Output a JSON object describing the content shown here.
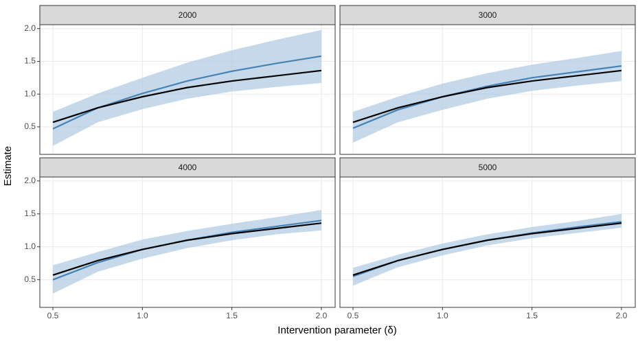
{
  "x_label": "Intervention parameter (δ)",
  "y_label": "Estimate",
  "chart_data": [
    {
      "type": "line",
      "title": "2000",
      "x": [
        0.5,
        0.75,
        1.0,
        1.25,
        1.5,
        1.75,
        2.0
      ],
      "band": {
        "color": "#a6c4de",
        "lower": [
          0.21,
          0.57,
          0.77,
          0.93,
          1.04,
          1.11,
          1.17
        ],
        "upper": [
          0.73,
          1.01,
          1.25,
          1.48,
          1.67,
          1.83,
          1.98
        ]
      },
      "series": [
        {
          "color": "#4682b4",
          "values": [
            0.47,
            0.79,
            1.01,
            1.2,
            1.35,
            1.47,
            1.58
          ]
        },
        {
          "color": "#000000",
          "values": [
            0.57,
            0.79,
            0.96,
            1.1,
            1.2,
            1.28,
            1.36
          ]
        }
      ],
      "xlim": [
        0.427,
        2.077
      ],
      "ylim": [
        0.08,
        2.06
      ],
      "xticks": [
        0.5,
        {
          "value": 1,
          "label": "1.0"
        },
        1.5,
        {
          "value": 2,
          "label": "2.0"
        }
      ],
      "yticks": [
        0.5,
        {
          "value": 1,
          "label": "1.0"
        },
        1.5,
        {
          "value": 2,
          "label": "2.0"
        }
      ],
      "grid": true
    },
    {
      "type": "line",
      "title": "3000",
      "x": [
        0.5,
        0.75,
        1.0,
        1.25,
        1.5,
        1.75,
        2.0
      ],
      "band": {
        "color": "#a6c4de",
        "lower": [
          0.26,
          0.57,
          0.76,
          0.93,
          1.05,
          1.13,
          1.2
        ],
        "upper": [
          0.73,
          0.96,
          1.16,
          1.32,
          1.45,
          1.55,
          1.66
        ]
      },
      "series": [
        {
          "color": "#4682b4",
          "values": [
            0.48,
            0.76,
            0.96,
            1.12,
            1.25,
            1.34,
            1.43
          ]
        },
        {
          "color": "#000000",
          "values": [
            0.57,
            0.79,
            0.96,
            1.1,
            1.2,
            1.28,
            1.36
          ]
        }
      ],
      "xlim": [
        0.427,
        2.077
      ],
      "ylim": [
        0.08,
        2.06
      ],
      "xticks": [
        0.5,
        {
          "value": 1,
          "label": "1.0"
        },
        1.5,
        {
          "value": 2,
          "label": "2.0"
        }
      ],
      "yticks": [
        0.5,
        {
          "value": 1,
          "label": "1.0"
        },
        1.5,
        {
          "value": 2,
          "label": "2.0"
        }
      ],
      "grid": true
    },
    {
      "type": "line",
      "title": "4000",
      "x": [
        0.5,
        0.75,
        1.0,
        1.25,
        1.5,
        1.75,
        2.0
      ],
      "band": {
        "color": "#a6c4de",
        "lower": [
          0.29,
          0.62,
          0.82,
          0.98,
          1.1,
          1.19,
          1.25
        ],
        "upper": [
          0.72,
          0.92,
          1.11,
          1.24,
          1.35,
          1.45,
          1.56
        ]
      },
      "series": [
        {
          "color": "#4682b4",
          "values": [
            0.5,
            0.76,
            0.96,
            1.1,
            1.22,
            1.31,
            1.4
          ]
        },
        {
          "color": "#000000",
          "values": [
            0.57,
            0.79,
            0.96,
            1.1,
            1.2,
            1.28,
            1.36
          ]
        }
      ],
      "xlim": [
        0.427,
        2.077
      ],
      "ylim": [
        0.08,
        2.06
      ],
      "xticks": [
        0.5,
        {
          "value": 1,
          "label": "1.0"
        },
        1.5,
        {
          "value": 2,
          "label": "2.0"
        }
      ],
      "yticks": [
        0.5,
        {
          "value": 1,
          "label": "1.0"
        },
        1.5,
        {
          "value": 2,
          "label": "2.0"
        }
      ],
      "grid": true
    },
    {
      "type": "line",
      "title": "5000",
      "x": [
        0.5,
        0.75,
        1.0,
        1.25,
        1.5,
        1.75,
        2.0
      ],
      "band": {
        "color": "#a6c4de",
        "lower": [
          0.41,
          0.69,
          0.87,
          1.02,
          1.13,
          1.21,
          1.29
        ],
        "upper": [
          0.68,
          0.88,
          1.05,
          1.19,
          1.3,
          1.39,
          1.5
        ]
      },
      "series": [
        {
          "color": "#4682b4",
          "values": [
            0.55,
            0.79,
            0.96,
            1.1,
            1.21,
            1.3,
            1.38
          ]
        },
        {
          "color": "#000000",
          "values": [
            0.57,
            0.79,
            0.96,
            1.1,
            1.2,
            1.28,
            1.36
          ]
        }
      ],
      "xlim": [
        0.427,
        2.077
      ],
      "ylim": [
        0.08,
        2.06
      ],
      "xticks": [
        0.5,
        {
          "value": 1,
          "label": "1.0"
        },
        1.5,
        {
          "value": 2,
          "label": "2.0"
        }
      ],
      "yticks": [
        0.5,
        {
          "value": 1,
          "label": "1.0"
        },
        1.5,
        {
          "value": 2,
          "label": "2.0"
        }
      ],
      "grid": true
    }
  ]
}
